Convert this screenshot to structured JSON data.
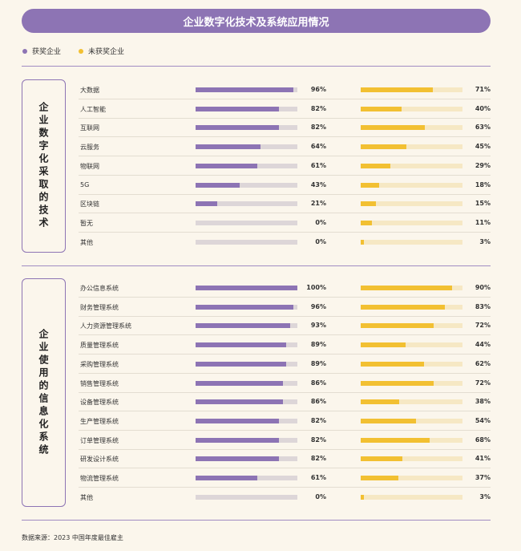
{
  "title": "企业数字化技术及系统应用情况",
  "legend": [
    {
      "label": "获奖企业",
      "color": "#8d74b4"
    },
    {
      "label": "未获奖企业",
      "color": "#f2c032"
    }
  ],
  "source": "数据来源：2023 中国年度最佳雇主",
  "chart_data": [
    {
      "type": "bar",
      "group_label": "企业数字化采取的技术",
      "series": [
        {
          "name": "获奖企业",
          "color": "#8d74b4"
        },
        {
          "name": "未获奖企业",
          "color": "#f2c032"
        }
      ],
      "xlim": [
        0,
        100
      ],
      "rows": [
        {
          "category": "大数据",
          "award": 96,
          "award_label": "96%",
          "non": 71,
          "non_label": "71%"
        },
        {
          "category": "人工智能",
          "award": 82,
          "award_label": "82%",
          "non": 40,
          "non_label": "40%"
        },
        {
          "category": "互联网",
          "award": 82,
          "award_label": "82%",
          "non": 63,
          "non_label": "63%"
        },
        {
          "category": "云服务",
          "award": 64,
          "award_label": "64%",
          "non": 45,
          "non_label": "45%"
        },
        {
          "category": "物联网",
          "award": 61,
          "award_label": "61%",
          "non": 29,
          "non_label": "29%"
        },
        {
          "category": "5G",
          "award": 43,
          "award_label": "43%",
          "non": 18,
          "non_label": "18%"
        },
        {
          "category": "区块链",
          "award": 21,
          "award_label": "21%",
          "non": 15,
          "non_label": "15%"
        },
        {
          "category": "暂无",
          "award": 0,
          "award_label": "0%",
          "non": 11,
          "non_label": "11%"
        },
        {
          "category": "其他",
          "award": 0,
          "award_label": "0%",
          "non": 3,
          "non_label": "3%"
        }
      ]
    },
    {
      "type": "bar",
      "group_label": "企业使用的信息化系统",
      "series": [
        {
          "name": "获奖企业",
          "color": "#8d74b4"
        },
        {
          "name": "未获奖企业",
          "color": "#f2c032"
        }
      ],
      "xlim": [
        0,
        100
      ],
      "rows": [
        {
          "category": "办公信息系统",
          "award": 100,
          "award_label": "100%",
          "non": 90,
          "non_label": "90%"
        },
        {
          "category": "财务管理系统",
          "award": 96,
          "award_label": "96%",
          "non": 83,
          "non_label": "83%"
        },
        {
          "category": "人力资源管理系统",
          "award": 93,
          "award_label": "93%",
          "non": 72,
          "non_label": "72%"
        },
        {
          "category": "质量管理系统",
          "award": 89,
          "award_label": "89%",
          "non": 44,
          "non_label": "44%"
        },
        {
          "category": "采购管理系统",
          "award": 89,
          "award_label": "89%",
          "non": 62,
          "non_label": "62%"
        },
        {
          "category": "销售管理系统",
          "award": 86,
          "award_label": "86%",
          "non": 72,
          "non_label": "72%"
        },
        {
          "category": "设备管理系统",
          "award": 86,
          "award_label": "86%",
          "non": 38,
          "non_label": "38%"
        },
        {
          "category": "生产管理系统",
          "award": 82,
          "award_label": "82%",
          "non": 54,
          "non_label": "54%"
        },
        {
          "category": "订单管理系统",
          "award": 82,
          "award_label": "82%",
          "non": 68,
          "non_label": "68%"
        },
        {
          "category": "研发设计系统",
          "award": 82,
          "award_label": "82%",
          "non": 41,
          "non_label": "41%"
        },
        {
          "category": "物流管理系统",
          "award": 61,
          "award_label": "61%",
          "non": 37,
          "non_label": "37%"
        },
        {
          "category": "其他",
          "award": 0,
          "award_label": "0%",
          "non": 3,
          "non_label": "3%"
        }
      ]
    }
  ]
}
